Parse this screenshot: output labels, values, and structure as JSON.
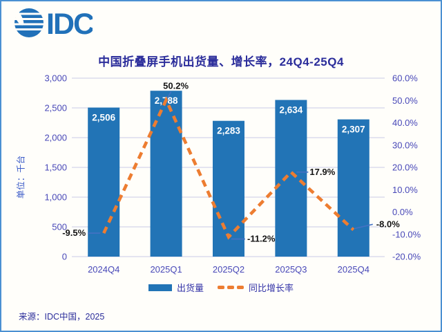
{
  "logo": {
    "text": "IDC"
  },
  "header": {
    "title": "中国折叠屏手机出货量、增长率，24Q4-25Q4"
  },
  "left_axis_title": "单位：千台",
  "legend": {
    "position": "bottom",
    "items": [
      {
        "label": "出货量",
        "marker": "bar-swatch",
        "color": "#2274B6"
      },
      {
        "label": "同比增长率",
        "marker": "dashed-line-swatch",
        "color": "#ED7D31"
      }
    ]
  },
  "footer": {
    "source": "来源：IDC中国，2025"
  },
  "colors": {
    "bar": "#2274B6",
    "line": "#ED7D31",
    "title_text": "#2B2D9B",
    "axis_text": "#4848B8",
    "gridline": "#C9C9E6",
    "frame_border": "#4A90D2",
    "logo_blue": "#2171B9",
    "leader_line": "#4472C4",
    "bar_value_label": "#FFFFFF",
    "growth_value_label": "#141414"
  },
  "chart_data": {
    "type": "combo-bar-line",
    "title": "中国折叠屏手机出货量、增长率，24Q4-25Q4",
    "categories": [
      "2024Q4",
      "2025Q1",
      "2025Q2",
      "2025Q3",
      "2025Q4"
    ],
    "series": [
      {
        "name": "出货量",
        "type": "bar",
        "axis": "left",
        "color": "#2274B6",
        "values": [
          2506,
          2788,
          2283,
          2634,
          2307
        ],
        "labels": [
          "2,506",
          "2,788",
          "2,283",
          "2,634",
          "2,307"
        ]
      },
      {
        "name": "同比增长率",
        "type": "line-dashed",
        "axis": "right",
        "color": "#ED7D31",
        "values": [
          -9.5,
          50.2,
          -11.2,
          17.9,
          -8.0
        ],
        "labels": [
          "-9.5%",
          "50.2%",
          "-11.2%",
          "17.9%",
          "-8.0%"
        ]
      }
    ],
    "left_axis": {
      "title": "单位：千台",
      "min": 0,
      "max": 3000,
      "tick_values": [
        0,
        500,
        1000,
        1500,
        2000,
        2500,
        3000
      ],
      "ticks": [
        "0",
        "500",
        "1,000",
        "1,500",
        "2,000",
        "2,500",
        "3,000"
      ]
    },
    "right_axis": {
      "min": -20,
      "max": 60,
      "tick_values": [
        -20,
        -10,
        0,
        10,
        20,
        30,
        40,
        50,
        60
      ],
      "ticks": [
        "-20.0%",
        "-10.0%",
        "0.0%",
        "10.0%",
        "20.0%",
        "30.0%",
        "40.0%",
        "50.0%",
        "60.0%"
      ]
    },
    "grid": "horizontal",
    "legend_position": "bottom"
  }
}
